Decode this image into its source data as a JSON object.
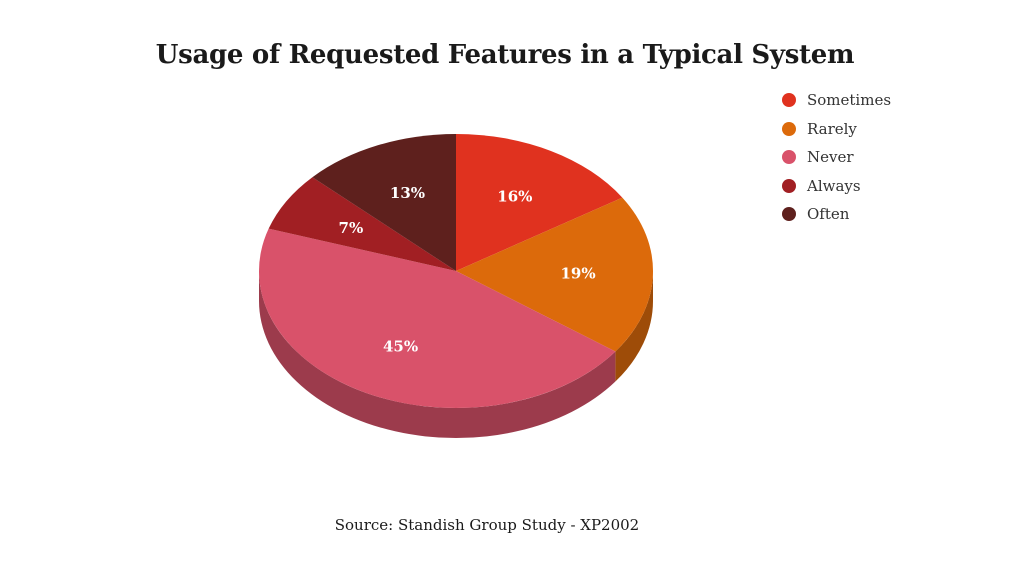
{
  "chart_data": {
    "type": "pie",
    "title": "Usage of Requested Features in a Typical System",
    "slices": [
      {
        "name": "Sometimes",
        "value": 16,
        "label": "16%",
        "color": "#e0321f"
      },
      {
        "name": "Rarely",
        "value": 19,
        "label": "19%",
        "color": "#dc6a0b"
      },
      {
        "name": "Never",
        "value": 45,
        "label": "45%",
        "color": "#d9526a"
      },
      {
        "name": "Always",
        "value": 7,
        "label": "7%",
        "color": "#a11f23"
      },
      {
        "name": "Often",
        "value": 13,
        "label": "13%",
        "color": "#5e201d"
      }
    ],
    "legend_position": "top-right",
    "style": "3d-tilted"
  },
  "source": "Source: Standish Group Study - XP2002"
}
